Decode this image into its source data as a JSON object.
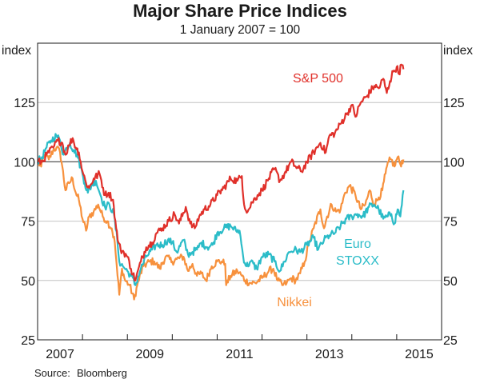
{
  "chart_data": {
    "type": "line",
    "title": "Major Share Price Indices",
    "subtitle": "1 January 2007 = 100",
    "xlabel": "",
    "ylabel_left": "index",
    "ylabel_right": "index",
    "xlim": [
      2007.0,
      2016.0
    ],
    "ylim": [
      25,
      150
    ],
    "yticks": [
      25,
      50,
      75,
      100,
      125
    ],
    "ytick_labels": [
      "25",
      "50",
      "75",
      "100",
      "125"
    ],
    "xtick_labels": [
      {
        "label": "2007",
        "center": 2007.5
      },
      {
        "label": "2009",
        "center": 2009.5
      },
      {
        "label": "2011",
        "center": 2011.5
      },
      {
        "label": "2013",
        "center": 2013.5
      },
      {
        "label": "2015",
        "center": 2015.5
      }
    ],
    "xticks": [
      2008,
      2009,
      2010,
      2011,
      2012,
      2013,
      2014,
      2015
    ],
    "grid": true,
    "reference_line": 100,
    "legend": "inline-labels",
    "source": "Bloomberg",
    "series": [
      {
        "name": "S&P 500",
        "color": "#e0302a",
        "label_position": "upper-right",
        "x": [
          2007.0,
          2007.1,
          2007.2,
          2007.35,
          2007.45,
          2007.55,
          2007.62,
          2007.7,
          2007.78,
          2007.85,
          2007.92,
          2008.0,
          2008.08,
          2008.15,
          2008.25,
          2008.38,
          2008.5,
          2008.58,
          2008.68,
          2008.75,
          2008.8,
          2008.85,
          2008.92,
          2009.0,
          2009.08,
          2009.18,
          2009.3,
          2009.42,
          2009.55,
          2009.65,
          2009.78,
          2009.92,
          2010.05,
          2010.15,
          2010.3,
          2010.4,
          2010.5,
          2010.6,
          2010.72,
          2010.85,
          2011.0,
          2011.15,
          2011.3,
          2011.45,
          2011.55,
          2011.6,
          2011.68,
          2011.78,
          2011.9,
          2012.0,
          2012.15,
          2012.28,
          2012.4,
          2012.5,
          2012.65,
          2012.75,
          2012.88,
          2013.0,
          2013.15,
          2013.3,
          2013.42,
          2013.5,
          2013.62,
          2013.75,
          2013.88,
          2014.0,
          2014.08,
          2014.2,
          2014.35,
          2014.5,
          2014.6,
          2014.7,
          2014.78,
          2014.85,
          2014.92,
          2015.0,
          2015.05,
          2015.1,
          2015.15
        ],
        "values": [
          100,
          100,
          103,
          106,
          109,
          108,
          103,
          107,
          110,
          106,
          104,
          96,
          91,
          89,
          93,
          95,
          86,
          87,
          84,
          72,
          66,
          63,
          62,
          60,
          55,
          50,
          58,
          64,
          66,
          70,
          72,
          75,
          78,
          74,
          81,
          74,
          72,
          77,
          80,
          82,
          86,
          89,
          93,
          92,
          94,
          82,
          79,
          83,
          86,
          88,
          93,
          97,
          92,
          95,
          100,
          98,
          96,
          100,
          104,
          108,
          104,
          111,
          112,
          116,
          120,
          124,
          119,
          125,
          128,
          132,
          131,
          135,
          129,
          134,
          138,
          140,
          137,
          141,
          139
        ]
      },
      {
        "name": "Euro STOXX",
        "color": "#2bbcc8",
        "label_position": "lower-right",
        "x": [
          2007.0,
          2007.1,
          2007.2,
          2007.3,
          2007.42,
          2007.5,
          2007.58,
          2007.65,
          2007.72,
          2007.8,
          2007.88,
          2008.0,
          2008.05,
          2008.12,
          2008.2,
          2008.3,
          2008.42,
          2008.5,
          2008.6,
          2008.7,
          2008.78,
          2008.82,
          2008.9,
          2009.0,
          2009.08,
          2009.18,
          2009.3,
          2009.42,
          2009.55,
          2009.65,
          2009.78,
          2009.9,
          2010.0,
          2010.1,
          2010.25,
          2010.35,
          2010.45,
          2010.55,
          2010.65,
          2010.78,
          2010.9,
          2011.0,
          2011.15,
          2011.3,
          2011.42,
          2011.5,
          2011.58,
          2011.65,
          2011.75,
          2011.88,
          2012.0,
          2012.15,
          2012.28,
          2012.4,
          2012.5,
          2012.6,
          2012.72,
          2012.85,
          2013.0,
          2013.15,
          2013.25,
          2013.38,
          2013.5,
          2013.62,
          2013.75,
          2013.88,
          2014.0,
          2014.12,
          2014.25,
          2014.38,
          2014.5,
          2014.6,
          2014.7,
          2014.8,
          2014.88,
          2014.95,
          2015.02,
          2015.08,
          2015.15
        ],
        "values": [
          100,
          102,
          106,
          109,
          111,
          109,
          103,
          106,
          108,
          105,
          103,
          95,
          91,
          87,
          90,
          92,
          85,
          81,
          82,
          78,
          66,
          58,
          56,
          54,
          52,
          48,
          55,
          60,
          63,
          65,
          65,
          67,
          66,
          62,
          67,
          61,
          62,
          63,
          66,
          64,
          65,
          70,
          72,
          73,
          71,
          71,
          60,
          56,
          58,
          55,
          60,
          61,
          58,
          54,
          58,
          62,
          63,
          62,
          65,
          68,
          63,
          67,
          69,
          70,
          73,
          76,
          77,
          78,
          77,
          81,
          82,
          80,
          76,
          77,
          78,
          74,
          80,
          77,
          88
        ]
      },
      {
        "name": "Nikkei",
        "color": "#f7913d",
        "label_position": "bottom-center",
        "x": [
          2007.0,
          2007.08,
          2007.15,
          2007.25,
          2007.35,
          2007.42,
          2007.5,
          2007.55,
          2007.62,
          2007.7,
          2007.78,
          2007.85,
          2007.92,
          2008.0,
          2008.08,
          2008.15,
          2008.25,
          2008.35,
          2008.45,
          2008.55,
          2008.65,
          2008.72,
          2008.78,
          2008.82,
          2008.88,
          2008.95,
          2009.05,
          2009.15,
          2009.22,
          2009.35,
          2009.5,
          2009.6,
          2009.72,
          2009.85,
          2010.0,
          2010.1,
          2010.25,
          2010.35,
          2010.45,
          2010.55,
          2010.65,
          2010.75,
          2010.88,
          2011.0,
          2011.1,
          2011.18,
          2011.2,
          2011.3,
          2011.45,
          2011.55,
          2011.62,
          2011.72,
          2011.85,
          2012.0,
          2012.15,
          2012.25,
          2012.35,
          2012.45,
          2012.55,
          2012.65,
          2012.75,
          2012.85,
          2012.95,
          2013.05,
          2013.15,
          2013.3,
          2013.38,
          2013.45,
          2013.55,
          2013.65,
          2013.75,
          2013.85,
          2013.95,
          2014.08,
          2014.2,
          2014.3,
          2014.4,
          2014.5,
          2014.6,
          2014.68,
          2014.75,
          2014.82,
          2014.88,
          2014.95,
          2015.02,
          2015.08,
          2015.15
        ],
        "values": [
          100,
          98,
          103,
          101,
          105,
          106,
          104,
          98,
          88,
          91,
          93,
          87,
          84,
          76,
          71,
          77,
          79,
          82,
          77,
          75,
          72,
          66,
          52,
          44,
          55,
          50,
          48,
          42,
          48,
          56,
          58,
          58,
          55,
          60,
          58,
          59,
          60,
          54,
          57,
          52,
          53,
          50,
          56,
          58,
          58,
          57,
          48,
          52,
          54,
          52,
          50,
          49,
          49,
          51,
          54,
          55,
          50,
          48,
          49,
          51,
          50,
          53,
          58,
          66,
          72,
          80,
          72,
          77,
          82,
          79,
          80,
          87,
          90,
          86,
          80,
          82,
          88,
          82,
          85,
          88,
          95,
          100,
          101,
          98,
          102,
          99,
          101
        ]
      }
    ]
  }
}
